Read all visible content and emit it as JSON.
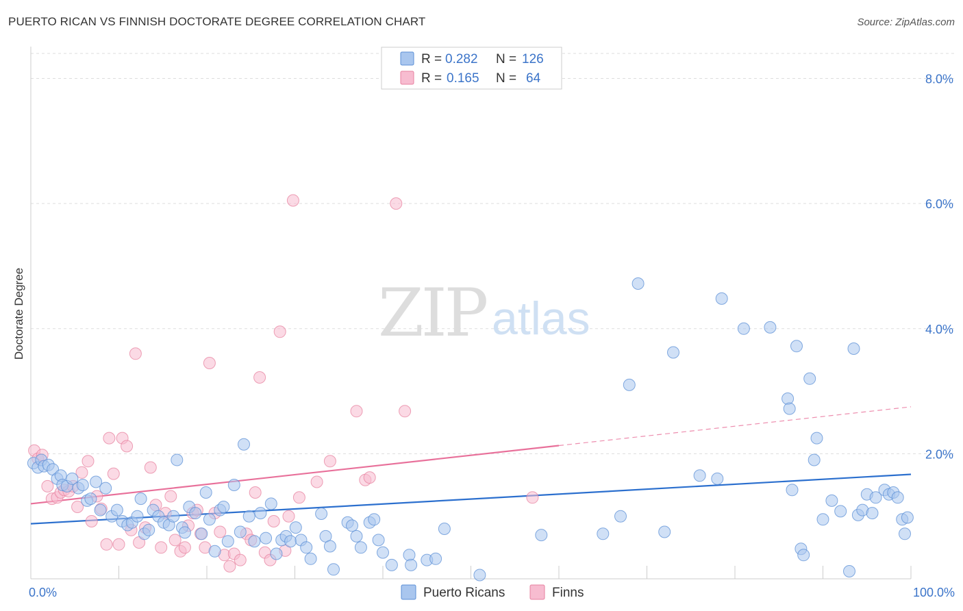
{
  "header": {
    "title": "PUERTO RICAN VS FINNISH DOCTORATE DEGREE CORRELATION CHART",
    "source": "Source: ZipAtlas.com"
  },
  "watermark": {
    "zip": "ZIP",
    "atlas": "atlas"
  },
  "legend": {
    "rows": [
      {
        "r_label": "R = ",
        "r_value": "0.282",
        "n_label": "N = ",
        "n_value": "126"
      },
      {
        "r_label": "R = ",
        "r_value": "0.165",
        "n_label": "N = ",
        "n_value": "64"
      }
    ]
  },
  "bottom_legend": {
    "items": [
      {
        "label": "Puerto Ricans"
      },
      {
        "label": "Finns"
      }
    ]
  },
  "colors": {
    "blue_fill": "#a9c6ee",
    "blue_stroke": "#5b8fd6",
    "blue_line": "#2b6fce",
    "pink_fill": "#f7bcd0",
    "pink_stroke": "#e7819f",
    "pink_line": "#e8709a",
    "tick_text": "#3b74c9",
    "grid": "#dddddd"
  },
  "chart_data": {
    "type": "scatter",
    "title": "PUERTO RICAN VS FINNISH DOCTORATE DEGREE CORRELATION CHART",
    "xlabel": "",
    "ylabel": "Doctorate Degree",
    "xlim": [
      0,
      100
    ],
    "ylim": [
      0,
      8.4
    ],
    "x_tick_labels": [
      {
        "value": 0,
        "label": "0.0%"
      },
      {
        "value": 100,
        "label": "100.0%"
      }
    ],
    "y_tick_labels": [
      {
        "value": 2,
        "label": "2.0%"
      },
      {
        "value": 4,
        "label": "4.0%"
      },
      {
        "value": 6,
        "label": "6.0%"
      },
      {
        "value": 8,
        "label": "8.0%"
      }
    ],
    "x_minor_ticks": [
      0,
      10,
      20,
      30,
      40,
      50,
      60,
      70,
      80,
      90,
      100
    ],
    "grid": true,
    "legend_position": "top-center",
    "series": [
      {
        "name": "Puerto Ricans",
        "r": 0.282,
        "n": 126,
        "trend": {
          "x": [
            0,
            100
          ],
          "y": [
            0.88,
            1.67
          ],
          "dashed_from": null
        },
        "points": [
          [
            0.3,
            1.85
          ],
          [
            0.8,
            1.78
          ],
          [
            1.2,
            1.9
          ],
          [
            1.5,
            1.8
          ],
          [
            2.0,
            1.82
          ],
          [
            2.5,
            1.75
          ],
          [
            3.0,
            1.6
          ],
          [
            3.4,
            1.65
          ],
          [
            3.6,
            1.5
          ],
          [
            4.1,
            1.48
          ],
          [
            4.7,
            1.6
          ],
          [
            5.4,
            1.45
          ],
          [
            5.9,
            1.5
          ],
          [
            6.4,
            1.25
          ],
          [
            6.8,
            1.28
          ],
          [
            7.4,
            1.55
          ],
          [
            7.9,
            1.1
          ],
          [
            8.5,
            1.45
          ],
          [
            9.2,
            1.0
          ],
          [
            9.8,
            1.1
          ],
          [
            10.4,
            0.92
          ],
          [
            11.0,
            0.86
          ],
          [
            11.5,
            0.9
          ],
          [
            12.1,
            1.0
          ],
          [
            12.5,
            1.28
          ],
          [
            12.9,
            0.72
          ],
          [
            13.4,
            0.78
          ],
          [
            13.9,
            1.1
          ],
          [
            14.5,
            1.0
          ],
          [
            15.1,
            0.9
          ],
          [
            15.7,
            0.86
          ],
          [
            16.2,
            1.0
          ],
          [
            16.6,
            1.9
          ],
          [
            17.2,
            0.82
          ],
          [
            17.5,
            0.74
          ],
          [
            18.0,
            1.15
          ],
          [
            18.7,
            1.05
          ],
          [
            19.4,
            0.72
          ],
          [
            19.9,
            1.38
          ],
          [
            20.3,
            0.95
          ],
          [
            20.9,
            0.44
          ],
          [
            21.5,
            1.1
          ],
          [
            21.9,
            1.15
          ],
          [
            22.4,
            0.6
          ],
          [
            23.1,
            1.5
          ],
          [
            23.8,
            0.75
          ],
          [
            24.2,
            2.15
          ],
          [
            24.8,
            1.0
          ],
          [
            25.4,
            0.6
          ],
          [
            26.1,
            1.05
          ],
          [
            26.7,
            0.65
          ],
          [
            27.3,
            1.2
          ],
          [
            27.9,
            0.4
          ],
          [
            28.5,
            0.62
          ],
          [
            29.0,
            0.68
          ],
          [
            29.5,
            0.6
          ],
          [
            30.1,
            0.82
          ],
          [
            30.7,
            0.62
          ],
          [
            31.3,
            0.5
          ],
          [
            31.8,
            0.32
          ],
          [
            33.0,
            1.04
          ],
          [
            33.5,
            0.68
          ],
          [
            34.0,
            0.52
          ],
          [
            34.4,
            0.15
          ],
          [
            36.0,
            0.9
          ],
          [
            36.5,
            0.85
          ],
          [
            37.0,
            0.68
          ],
          [
            37.5,
            0.5
          ],
          [
            38.5,
            0.9
          ],
          [
            39.0,
            0.95
          ],
          [
            39.5,
            0.62
          ],
          [
            40.0,
            0.42
          ],
          [
            41.0,
            0.22
          ],
          [
            43.0,
            0.38
          ],
          [
            43.2,
            0.22
          ],
          [
            45.0,
            0.3
          ],
          [
            46.0,
            0.32
          ],
          [
            47.0,
            0.8
          ],
          [
            51.0,
            0.06
          ],
          [
            58.0,
            0.7
          ],
          [
            65.0,
            0.72
          ],
          [
            67.0,
            1.0
          ],
          [
            68.0,
            3.1
          ],
          [
            69.0,
            4.72
          ],
          [
            72.0,
            0.75
          ],
          [
            73.0,
            3.62
          ],
          [
            76.0,
            1.65
          ],
          [
            78.0,
            1.6
          ],
          [
            78.5,
            4.48
          ],
          [
            81.0,
            4.0
          ],
          [
            84.0,
            4.02
          ],
          [
            86.0,
            2.88
          ],
          [
            86.2,
            2.72
          ],
          [
            86.5,
            1.42
          ],
          [
            87.0,
            3.72
          ],
          [
            87.5,
            0.48
          ],
          [
            87.8,
            0.38
          ],
          [
            88.5,
            3.2
          ],
          [
            89.0,
            1.9
          ],
          [
            89.3,
            2.25
          ],
          [
            90.0,
            0.95
          ],
          [
            91.0,
            1.25
          ],
          [
            92.0,
            1.08
          ],
          [
            93.0,
            0.12
          ],
          [
            93.5,
            3.68
          ],
          [
            94.0,
            1.02
          ],
          [
            94.5,
            1.1
          ],
          [
            95.0,
            1.35
          ],
          [
            95.6,
            1.05
          ],
          [
            96.0,
            1.3
          ],
          [
            97.0,
            1.42
          ],
          [
            97.5,
            1.35
          ],
          [
            98.0,
            1.38
          ],
          [
            98.5,
            1.3
          ],
          [
            99.0,
            0.95
          ],
          [
            99.3,
            0.72
          ],
          [
            99.6,
            0.98
          ]
        ]
      },
      {
        "name": "Finns",
        "r": 0.165,
        "n": 64,
        "trend": {
          "x": [
            0,
            100
          ],
          "y": [
            1.2,
            2.75
          ],
          "dashed_from": 60
        },
        "points": [
          [
            0.4,
            2.05
          ],
          [
            0.8,
            1.92
          ],
          [
            1.3,
            1.98
          ],
          [
            1.9,
            1.48
          ],
          [
            2.4,
            1.28
          ],
          [
            3.0,
            1.3
          ],
          [
            3.4,
            1.38
          ],
          [
            3.8,
            1.42
          ],
          [
            4.3,
            1.4
          ],
          [
            4.8,
            1.48
          ],
          [
            5.3,
            1.15
          ],
          [
            5.8,
            1.7
          ],
          [
            6.5,
            1.88
          ],
          [
            6.9,
            0.92
          ],
          [
            7.5,
            1.32
          ],
          [
            8.0,
            1.12
          ],
          [
            8.6,
            0.55
          ],
          [
            8.9,
            2.25
          ],
          [
            9.4,
            1.68
          ],
          [
            10.0,
            0.55
          ],
          [
            10.4,
            2.25
          ],
          [
            10.9,
            2.12
          ],
          [
            11.4,
            0.78
          ],
          [
            11.9,
            3.6
          ],
          [
            12.3,
            0.58
          ],
          [
            13.0,
            0.82
          ],
          [
            13.6,
            1.78
          ],
          [
            14.2,
            1.18
          ],
          [
            14.8,
            0.5
          ],
          [
            15.3,
            1.05
          ],
          [
            15.9,
            1.32
          ],
          [
            16.4,
            0.62
          ],
          [
            17.0,
            0.44
          ],
          [
            17.5,
            0.5
          ],
          [
            17.9,
            0.85
          ],
          [
            18.4,
            1.05
          ],
          [
            18.9,
            1.1
          ],
          [
            19.3,
            0.72
          ],
          [
            19.8,
            0.5
          ],
          [
            20.3,
            3.45
          ],
          [
            20.9,
            1.05
          ],
          [
            21.5,
            0.75
          ],
          [
            22.0,
            0.38
          ],
          [
            22.6,
            0.2
          ],
          [
            23.1,
            0.4
          ],
          [
            23.8,
            0.3
          ],
          [
            24.5,
            0.72
          ],
          [
            25.0,
            0.62
          ],
          [
            25.5,
            1.38
          ],
          [
            26.0,
            3.22
          ],
          [
            26.6,
            0.42
          ],
          [
            27.2,
            0.3
          ],
          [
            27.6,
            0.92
          ],
          [
            28.3,
            3.95
          ],
          [
            28.9,
            0.45
          ],
          [
            29.3,
            1.0
          ],
          [
            29.8,
            6.05
          ],
          [
            30.5,
            1.3
          ],
          [
            32.5,
            1.55
          ],
          [
            34.0,
            1.88
          ],
          [
            37.0,
            2.68
          ],
          [
            38.0,
            1.58
          ],
          [
            38.5,
            1.62
          ],
          [
            41.5,
            6.0
          ],
          [
            42.5,
            2.68
          ],
          [
            57.0,
            1.3
          ]
        ]
      }
    ]
  }
}
